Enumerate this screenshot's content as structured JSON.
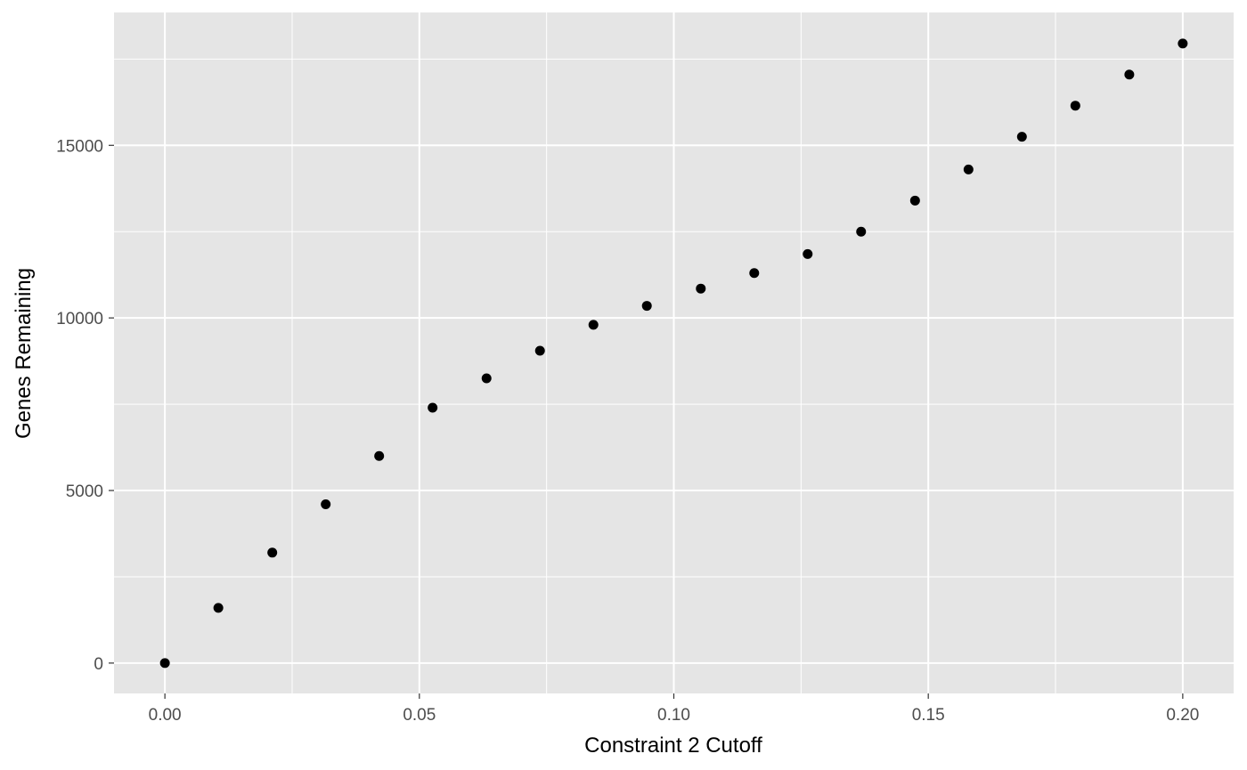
{
  "chart_data": {
    "type": "scatter",
    "title": "",
    "xlabel": "Constraint 2 Cutoff",
    "ylabel": "Genes Remaining",
    "xlim": [
      -0.01,
      0.21
    ],
    "ylim": [
      -880,
      18850
    ],
    "x_ticks": [
      0.0,
      0.05,
      0.1,
      0.15,
      0.2
    ],
    "x_tick_labels": [
      "0.00",
      "0.05",
      "0.10",
      "0.15",
      "0.20"
    ],
    "x_minor_ticks": [
      0.025,
      0.075,
      0.125,
      0.175
    ],
    "y_ticks": [
      0,
      5000,
      10000,
      15000
    ],
    "y_tick_labels": [
      "0",
      "5000",
      "10000",
      "15000"
    ],
    "y_minor_ticks": [
      2500,
      7500,
      12500,
      17500
    ],
    "grid": true,
    "colors": {
      "panel": "#e5e5e5",
      "grid": "#ffffff",
      "point": "#000000"
    },
    "points": [
      {
        "x": 0.0,
        "y": 0
      },
      {
        "x": 0.0105,
        "y": 1600
      },
      {
        "x": 0.0211,
        "y": 3200
      },
      {
        "x": 0.0316,
        "y": 4600
      },
      {
        "x": 0.0421,
        "y": 6000
      },
      {
        "x": 0.0526,
        "y": 7400
      },
      {
        "x": 0.0632,
        "y": 8250
      },
      {
        "x": 0.0737,
        "y": 9050
      },
      {
        "x": 0.0842,
        "y": 9800
      },
      {
        "x": 0.0947,
        "y": 10350
      },
      {
        "x": 0.1053,
        "y": 10850
      },
      {
        "x": 0.1158,
        "y": 11300
      },
      {
        "x": 0.1263,
        "y": 11850
      },
      {
        "x": 0.1368,
        "y": 12500
      },
      {
        "x": 0.1474,
        "y": 13400
      },
      {
        "x": 0.1579,
        "y": 14300
      },
      {
        "x": 0.1684,
        "y": 15250
      },
      {
        "x": 0.1789,
        "y": 16150
      },
      {
        "x": 0.1895,
        "y": 17050
      },
      {
        "x": 0.2,
        "y": 17950
      }
    ]
  }
}
